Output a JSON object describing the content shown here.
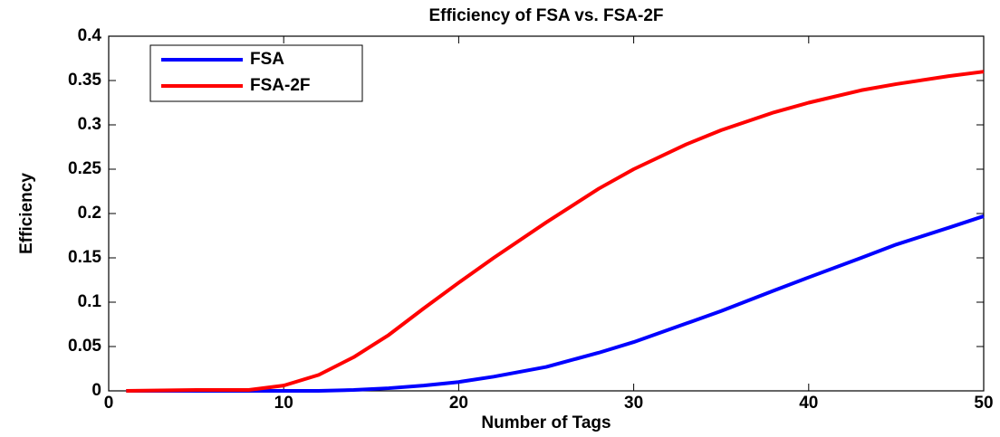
{
  "chart_data": {
    "type": "line",
    "title": "Efficiency of FSA vs. FSA-2F",
    "xlabel": "Number of Tags",
    "ylabel": "Efficiency",
    "x": [
      1,
      5,
      8,
      10,
      12,
      14,
      16,
      18,
      20,
      22,
      25,
      28,
      30,
      33,
      35,
      38,
      40,
      43,
      45,
      48,
      50
    ],
    "series": [
      {
        "name": "FSA",
        "color": "#0000ff",
        "values": [
          0,
          0,
          0,
          0,
          0,
          0.001,
          0.003,
          0.006,
          0.01,
          0.016,
          0.027,
          0.043,
          0.055,
          0.076,
          0.09,
          0.113,
          0.128,
          0.15,
          0.165,
          0.184,
          0.197
        ]
      },
      {
        "name": "FSA-2F",
        "color": "#ff0000",
        "values": [
          0,
          0.001,
          0.001,
          0.006,
          0.018,
          0.038,
          0.063,
          0.093,
          0.122,
          0.15,
          0.19,
          0.228,
          0.25,
          0.278,
          0.294,
          0.314,
          0.325,
          0.339,
          0.346,
          0.355,
          0.36
        ]
      }
    ],
    "xlim": [
      0,
      50
    ],
    "xticks": [
      0,
      10,
      20,
      30,
      40,
      50
    ],
    "ylim": [
      0,
      0.4
    ],
    "yticks": [
      0,
      0.05,
      0.1,
      0.15,
      0.2,
      0.25,
      0.3,
      0.35,
      0.4
    ],
    "grid": false,
    "legend": "upper left"
  }
}
